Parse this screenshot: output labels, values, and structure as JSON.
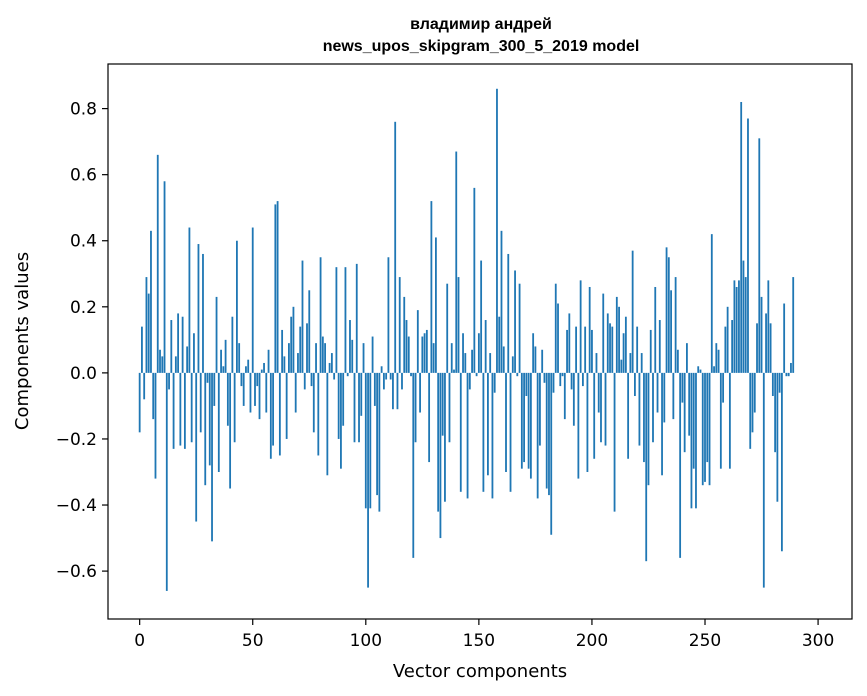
{
  "chart_data": {
    "type": "bar",
    "title_lines": [
      "владимир андрей",
      "news_upos_skipgram_300_5_2019 model"
    ],
    "xlabel": "Vector components",
    "ylabel": "Components values",
    "xlim": [
      -14,
      315
    ],
    "ylim": [
      -0.745,
      0.935
    ],
    "xticks": [
      0,
      50,
      100,
      150,
      200,
      250,
      300
    ],
    "yticks": [
      -0.6,
      -0.4,
      -0.2,
      0.0,
      0.2,
      0.4,
      0.6,
      0.8
    ],
    "ytick_labels": [
      "−0.6",
      "−0.4",
      "−0.2",
      "0.0",
      "0.2",
      "0.4",
      "0.6",
      "0.8"
    ],
    "bar_color": "#1f77b4",
    "values": [
      -0.18,
      0.14,
      -0.08,
      0.29,
      0.24,
      0.43,
      -0.14,
      -0.32,
      0.66,
      0.07,
      0.05,
      0.58,
      -0.66,
      -0.05,
      0.16,
      -0.23,
      0.05,
      0.18,
      -0.22,
      0.17,
      -0.23,
      0.08,
      0.44,
      -0.21,
      0.12,
      -0.45,
      0.39,
      -0.18,
      0.36,
      -0.34,
      -0.03,
      -0.28,
      -0.51,
      -0.1,
      0.23,
      -0.3,
      0.07,
      0.02,
      0.1,
      -0.16,
      -0.35,
      0.17,
      -0.21,
      0.4,
      0.09,
      -0.04,
      -0.1,
      0.02,
      0.04,
      -0.12,
      0.44,
      -0.1,
      -0.04,
      -0.14,
      0.01,
      0.03,
      -0.12,
      0.07,
      -0.26,
      -0.22,
      0.51,
      0.52,
      -0.25,
      0.13,
      0.05,
      -0.2,
      0.09,
      0.17,
      0.2,
      -0.12,
      0.06,
      0.14,
      0.34,
      -0.05,
      0.15,
      0.25,
      -0.04,
      -0.18,
      0.09,
      -0.25,
      0.35,
      0.11,
      0.09,
      -0.31,
      0.03,
      0.06,
      -0.02,
      0.32,
      -0.2,
      -0.29,
      -0.16,
      0.32,
      -0.01,
      0.16,
      0.1,
      -0.21,
      0.33,
      -0.21,
      -0.13,
      0.09,
      -0.41,
      -0.65,
      -0.41,
      0.11,
      -0.1,
      -0.37,
      -0.42,
      0.02,
      -0.05,
      -0.02,
      0.35,
      -0.02,
      -0.11,
      0.76,
      -0.11,
      0.29,
      -0.05,
      0.23,
      0.16,
      0.11,
      -0.01,
      -0.56,
      -0.21,
      0.19,
      -0.12,
      0.11,
      0.12,
      0.13,
      -0.27,
      0.52,
      0.09,
      0.41,
      -0.42,
      -0.5,
      -0.19,
      -0.39,
      0.27,
      -0.21,
      0.09,
      0.01,
      0.67,
      0.29,
      -0.36,
      0.12,
      0.06,
      -0.38,
      -0.05,
      0.07,
      0.56,
      -0.01,
      0.12,
      0.34,
      -0.36,
      0.16,
      -0.31,
      0.06,
      -0.38,
      -0.06,
      0.86,
      0.17,
      0.43,
      0.08,
      -0.3,
      0.36,
      -0.36,
      0.05,
      0.31,
      -0.01,
      0.27,
      -0.29,
      -0.27,
      -0.07,
      -0.29,
      -0.32,
      0.12,
      0.08,
      -0.38,
      -0.22,
      0.07,
      -0.03,
      -0.35,
      -0.37,
      -0.49,
      -0.06,
      0.27,
      0.21,
      -0.04,
      -0.01,
      -0.14,
      0.13,
      0.18,
      -0.05,
      -0.16,
      0.14,
      -0.32,
      0.28,
      -0.04,
      0.14,
      -0.3,
      0.26,
      0.13,
      -0.26,
      0.06,
      -0.12,
      -0.21,
      0.24,
      -0.22,
      0.18,
      0.15,
      0.14,
      -0.42,
      0.23,
      0.2,
      0.04,
      0.12,
      0.17,
      -0.26,
      0.06,
      0.37,
      -0.07,
      0.14,
      -0.22,
      0.06,
      -0.27,
      -0.57,
      -0.34,
      0.13,
      -0.21,
      0.26,
      -0.12,
      0.16,
      -0.31,
      -0.15,
      0.38,
      0.35,
      0.25,
      -0.14,
      0.29,
      0.07,
      -0.56,
      -0.09,
      -0.24,
      0.09,
      -0.19,
      -0.41,
      -0.29,
      -0.41,
      0.02,
      0.01,
      -0.34,
      -0.33,
      -0.27,
      -0.34,
      0.42,
      0.02,
      0.09,
      0.07,
      -0.29,
      -0.09,
      0.14,
      0.2,
      -0.29,
      0.16,
      0.28,
      0.26,
      0.28,
      0.82,
      0.34,
      0.29,
      0.77,
      -0.23,
      -0.18,
      -0.12,
      0.15,
      0.71,
      0.23,
      -0.65,
      0.18,
      0.28,
      0.15,
      -0.07,
      -0.24,
      -0.39,
      -0.06,
      -0.54,
      0.21,
      -0.01,
      -0.01,
      0.03,
      0.29
    ]
  }
}
